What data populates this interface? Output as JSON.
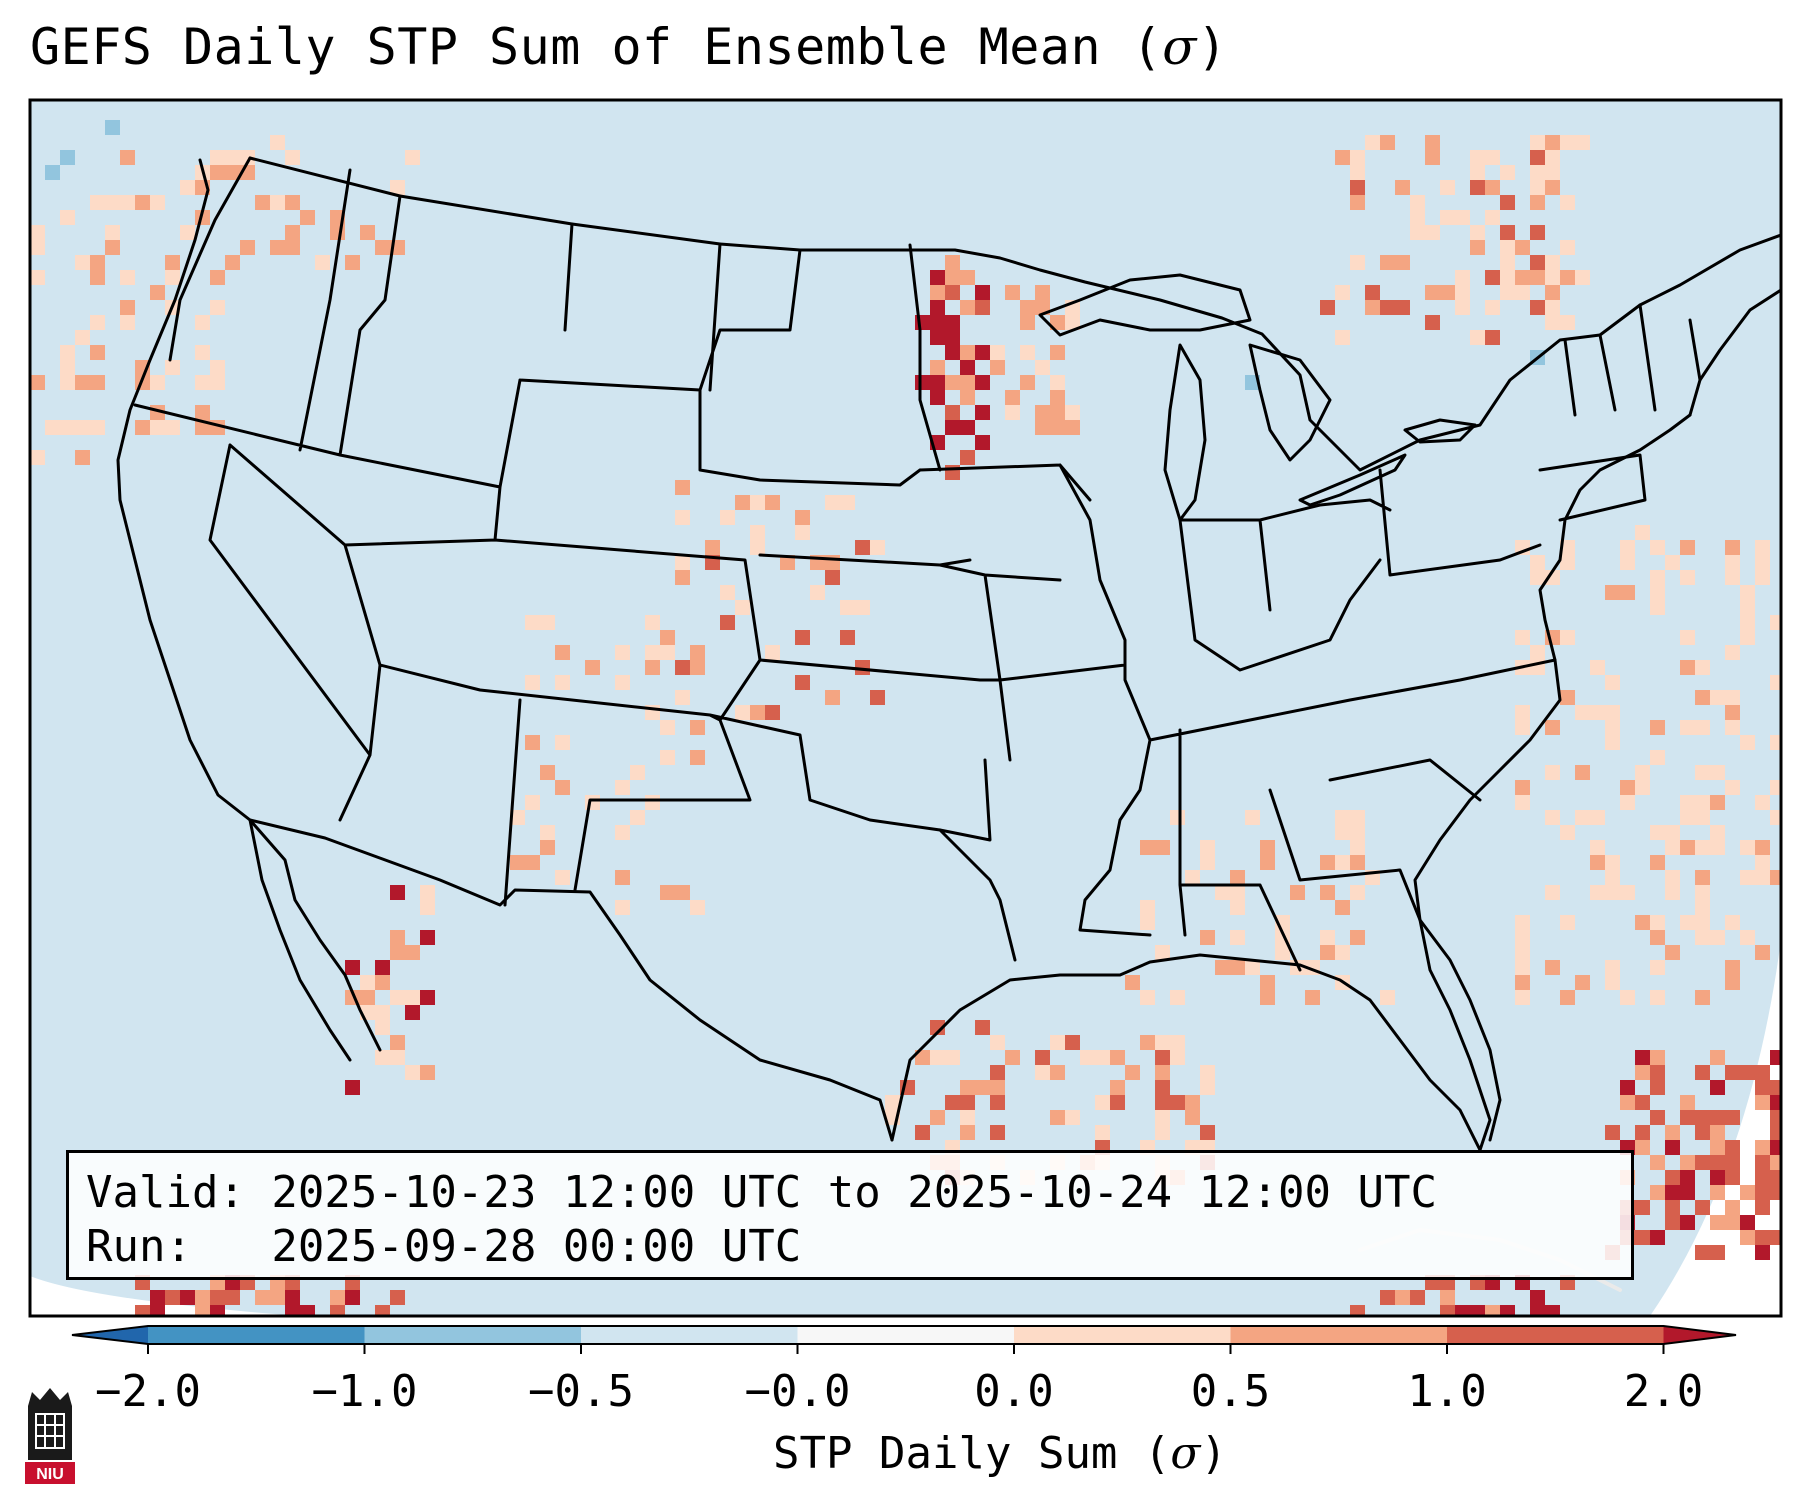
{
  "title": {
    "text": "GEFS Daily STP Sum of Ensemble Mean (",
    "symbol": "σ",
    "close": ")"
  },
  "info": {
    "valid": "Valid: 2025-10-23 12:00 UTC to 2025-10-24 12:00 UTC",
    "run": "Run:   2025-09-28 00:00 UTC"
  },
  "colorbar": {
    "label_text": "STP Daily Sum (",
    "label_symbol": "σ",
    "label_close": ")",
    "ticks": [
      "−2.0",
      "−1.0",
      "−0.5",
      "−0.0",
      "0.0",
      "0.5",
      "1.0",
      "2.0"
    ],
    "bins": [
      {
        "from": "−2.0",
        "to": "−1.0",
        "color": "#4393c3"
      },
      {
        "from": "−1.0",
        "to": "−0.5",
        "color": "#92c5de"
      },
      {
        "from": "−0.5",
        "to": "−0.0",
        "color": "#d1e5f0"
      },
      {
        "from": "−0.0",
        "to": "0.0",
        "color": "#f7f7f7"
      },
      {
        "from": "0.0",
        "to": "0.5",
        "color": "#fddbc7"
      },
      {
        "from": "0.5",
        "to": "1.0",
        "color": "#f4a582"
      },
      {
        "from": "1.0",
        "to": "2.0",
        "color": "#d6604d"
      }
    ],
    "under_color": "#2166ac",
    "over_color": "#b2182b"
  },
  "map": {
    "background_color": "#d1e5f0",
    "boundary_color": "#000000",
    "region": "Continental United States"
  },
  "logo": {
    "text": "NIU",
    "color": "#c8102e"
  }
}
